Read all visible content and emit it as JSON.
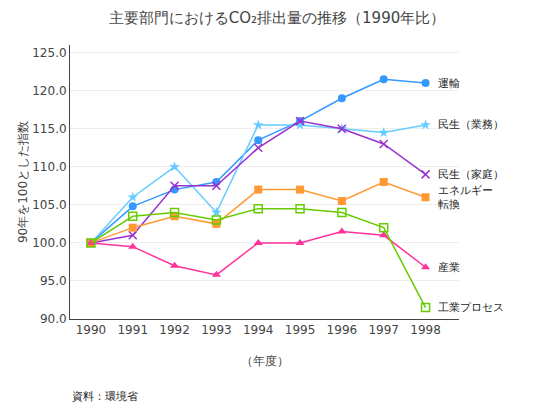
{
  "chart_data": {
    "type": "line",
    "title": "主要部門におけるCO₂排出量の推移（1990年比）",
    "xlabel": "（年度）",
    "ylabel": "90年を100とした指数",
    "source": "資料：環境省",
    "x": [
      1990,
      1991,
      1992,
      1993,
      1994,
      1995,
      1996,
      1997,
      1998
    ],
    "series": [
      {
        "name": "運輸",
        "color": "#3399FF",
        "marker": "circle",
        "values": [
          100.0,
          104.8,
          107.0,
          108.0,
          113.5,
          116.0,
          119.0,
          121.5,
          121.0
        ]
      },
      {
        "name": "民生（業務）",
        "color": "#66CCFF",
        "marker": "star",
        "values": [
          100.0,
          106.0,
          110.0,
          104.0,
          115.5,
          115.5,
          115.0,
          114.5,
          115.5
        ]
      },
      {
        "name": "民生（家庭）",
        "color": "#9933CC",
        "marker": "x-thin",
        "values": [
          100.0,
          101.0,
          107.5,
          107.5,
          112.5,
          116.0,
          115.0,
          113.0,
          109.0
        ]
      },
      {
        "name": "エネルギー\n転換",
        "color": "#FF9933",
        "marker": "square",
        "values": [
          100.0,
          102.0,
          103.5,
          102.5,
          107.0,
          107.0,
          105.5,
          108.0,
          106.0
        ]
      },
      {
        "name": "産業",
        "color": "#FF3399",
        "marker": "triangle-up",
        "values": [
          100.0,
          99.5,
          97.0,
          95.8,
          100.0,
          100.0,
          101.5,
          101.0,
          96.8
        ]
      },
      {
        "name": "工業プロセス",
        "color": "#66CC00",
        "marker": "square-open",
        "values": [
          100.0,
          103.5,
          104.0,
          103.0,
          104.5,
          104.5,
          104.0,
          102.0,
          91.5
        ]
      }
    ],
    "xlim": [
      1989.5,
      1998.8
    ],
    "xticks": [
      1990,
      1991,
      1992,
      1993,
      1994,
      1995,
      1996,
      1997,
      1998
    ],
    "ylim": [
      90.0,
      126.0
    ],
    "yticks": [
      {
        "value": 90.0,
        "label": "90.0"
      },
      {
        "value": 95.0,
        "label": "95.0"
      },
      {
        "value": 100.0,
        "label": "100.0"
      },
      {
        "value": 105.0,
        "label": "105.0"
      },
      {
        "value": 110.0,
        "label": "110.0"
      },
      {
        "value": 115.0,
        "label": "115.0"
      },
      {
        "value": 120.0,
        "label": "120.0"
      },
      {
        "value": 125.0,
        "label": "125.0"
      }
    ],
    "grid": "y"
  }
}
